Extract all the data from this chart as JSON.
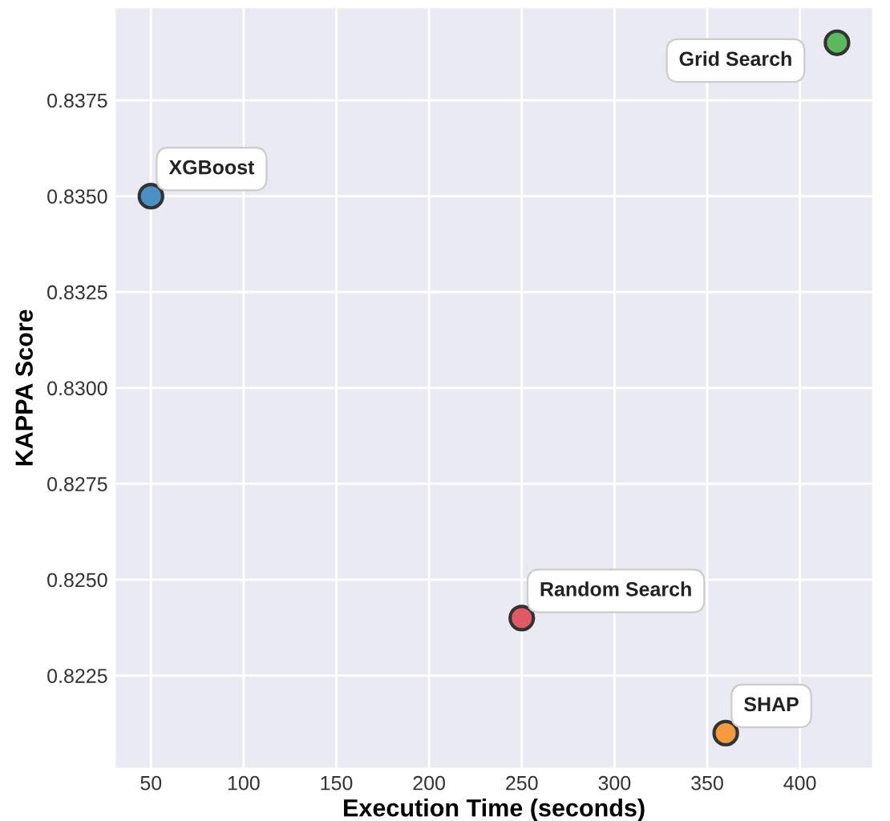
{
  "chart_data": {
    "type": "scatter",
    "xlabel": "Execution Time (seconds)",
    "ylabel": "KAPPA Score",
    "series": [
      {
        "x": [
          50
        ],
        "values": [
          0.835
        ],
        "color": "#4a90c4"
      },
      {
        "x": [
          250
        ],
        "values": [
          0.824
        ],
        "color": "#e05a66"
      },
      {
        "x": [
          360
        ],
        "values": [
          0.821
        ],
        "color": "#f39a3e"
      },
      {
        "x": [
          420
        ],
        "values": [
          0.839
        ],
        "color": "#5cb85c"
      }
    ],
    "annotations": [
      {
        "text": "XGBoost",
        "x": 50,
        "y": 0.835
      },
      {
        "text": "Random Search",
        "x": 250,
        "y": 0.824
      },
      {
        "text": "SHAP",
        "x": 360,
        "y": 0.821
      },
      {
        "text": "Grid Search",
        "x": 420,
        "y": 0.839
      }
    ],
    "xlim": [
      31,
      439
    ],
    "ylim": [
      0.8201,
      0.8399
    ],
    "xticks": [
      50,
      100,
      150,
      200,
      250,
      300,
      350,
      400
    ],
    "yticks": [
      {
        "value": 0.8225,
        "label": "0.8225"
      },
      {
        "value": 0.825,
        "label": "0.8250"
      },
      {
        "value": 0.8275,
        "label": "0.8275"
      },
      {
        "value": 0.83,
        "label": "0.8300"
      },
      {
        "value": 0.8325,
        "label": "0.8325"
      },
      {
        "value": 0.835,
        "label": "0.8350"
      },
      {
        "value": 0.8375,
        "label": "0.8375"
      }
    ],
    "grid": true,
    "marker": "circle"
  }
}
